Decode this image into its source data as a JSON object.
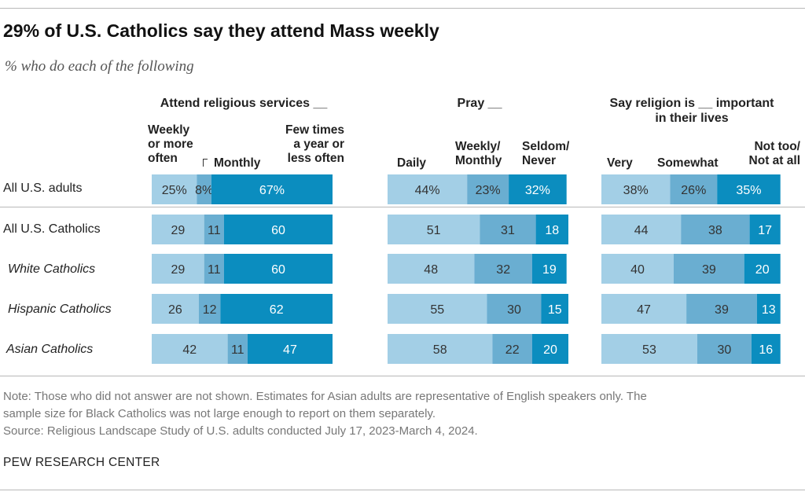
{
  "title": "29% of U.S. Catholics say they attend Mass weekly",
  "subtitle": "% who do each of the following",
  "panels": [
    {
      "title_lines": [
        "Attend religious services __"
      ],
      "categories": [
        "Weekly or more often",
        "Monthly",
        "Few times a year or less often"
      ]
    },
    {
      "title_lines": [
        "Pray __"
      ],
      "categories": [
        "Daily",
        "Weekly/ Monthly",
        "Seldom/ Never"
      ]
    },
    {
      "title_lines": [
        "Say religion is __ important",
        "in their lives"
      ],
      "categories": [
        "Very",
        "Somewhat",
        "Not too/ Not at all"
      ]
    }
  ],
  "column_labels": {
    "attend_weekly": [
      "Weekly",
      "or more",
      "often"
    ],
    "attend_monthly": [
      "Monthly"
    ],
    "attend_few": [
      "Few times",
      "a year or",
      "less often"
    ],
    "pray_daily": [
      "Daily"
    ],
    "pray_weekly": [
      "Weekly/",
      "Monthly"
    ],
    "pray_seldom": [
      "Seldom/",
      "Never"
    ],
    "imp_very": [
      "Very"
    ],
    "imp_somewhat": [
      "Somewhat"
    ],
    "imp_not": [
      "Not too/",
      "Not at all"
    ]
  },
  "rows": [
    {
      "label": "All U.S. adults",
      "italic": false
    },
    {
      "label": "All U.S. Catholics",
      "italic": false
    },
    {
      "label": "White Catholics",
      "italic": true
    },
    {
      "label": "Hispanic Catholics",
      "italic": true
    },
    {
      "label": "Asian Catholics",
      "italic": true
    }
  ],
  "colors": [
    "#a3cfe6",
    "#6aaed1",
    "#0b8dbf"
  ],
  "chart_data": {
    "type": "bar",
    "orientation": "horizontal-stacked",
    "title": "29% of U.S. Catholics say they attend Mass weekly",
    "subtitle": "% who do each of the following",
    "categories": [
      "All U.S. adults",
      "All U.S. Catholics",
      "White Catholics",
      "Hispanic Catholics",
      "Asian Catholics"
    ],
    "panels": [
      {
        "name": "Attend religious services __",
        "series": [
          {
            "name": "Weekly or more often",
            "values": [
              25,
              29,
              29,
              26,
              42
            ],
            "labels": [
              "25%",
              "29",
              "29",
              "26",
              "42"
            ]
          },
          {
            "name": "Monthly",
            "values": [
              8,
              11,
              11,
              12,
              11
            ],
            "labels": [
              "8%",
              "11",
              "11",
              "12",
              "11"
            ]
          },
          {
            "name": "Few times a year or less often",
            "values": [
              67,
              60,
              60,
              62,
              47
            ],
            "labels": [
              "67%",
              "60",
              "60",
              "62",
              "47"
            ]
          }
        ]
      },
      {
        "name": "Pray __",
        "series": [
          {
            "name": "Daily",
            "values": [
              44,
              51,
              48,
              55,
              58
            ],
            "labels": [
              "44%",
              "51",
              "48",
              "55",
              "58"
            ]
          },
          {
            "name": "Weekly/ Monthly",
            "values": [
              23,
              31,
              32,
              30,
              22
            ],
            "labels": [
              "23%",
              "31",
              "32",
              "30",
              "22"
            ]
          },
          {
            "name": "Seldom/ Never",
            "values": [
              32,
              18,
              19,
              15,
              20
            ],
            "labels": [
              "32%",
              "18",
              "19",
              "15",
              "20"
            ]
          }
        ]
      },
      {
        "name": "Say religion is __ important in their lives",
        "series": [
          {
            "name": "Very",
            "values": [
              38,
              44,
              40,
              47,
              53
            ],
            "labels": [
              "38%",
              "44",
              "40",
              "47",
              "53"
            ]
          },
          {
            "name": "Somewhat",
            "values": [
              26,
              38,
              39,
              39,
              30
            ],
            "labels": [
              "26%",
              "38",
              "39",
              "39",
              "30"
            ]
          },
          {
            "name": "Not too/ Not at all",
            "values": [
              35,
              17,
              20,
              13,
              16
            ],
            "labels": [
              "35%",
              "17",
              "20",
              "13",
              "16"
            ]
          }
        ]
      }
    ],
    "xlim": [
      0,
      100
    ]
  },
  "note_lines": [
    "Note: Those who did not answer are not shown. Estimates for Asian adults are representative of English speakers only. The",
    "sample size for Black Catholics was not large enough to report on them separately.",
    "Source: Religious Landscape Study of U.S. adults conducted July 17, 2023-March 4, 2024."
  ],
  "brand": "PEW RESEARCH CENTER"
}
